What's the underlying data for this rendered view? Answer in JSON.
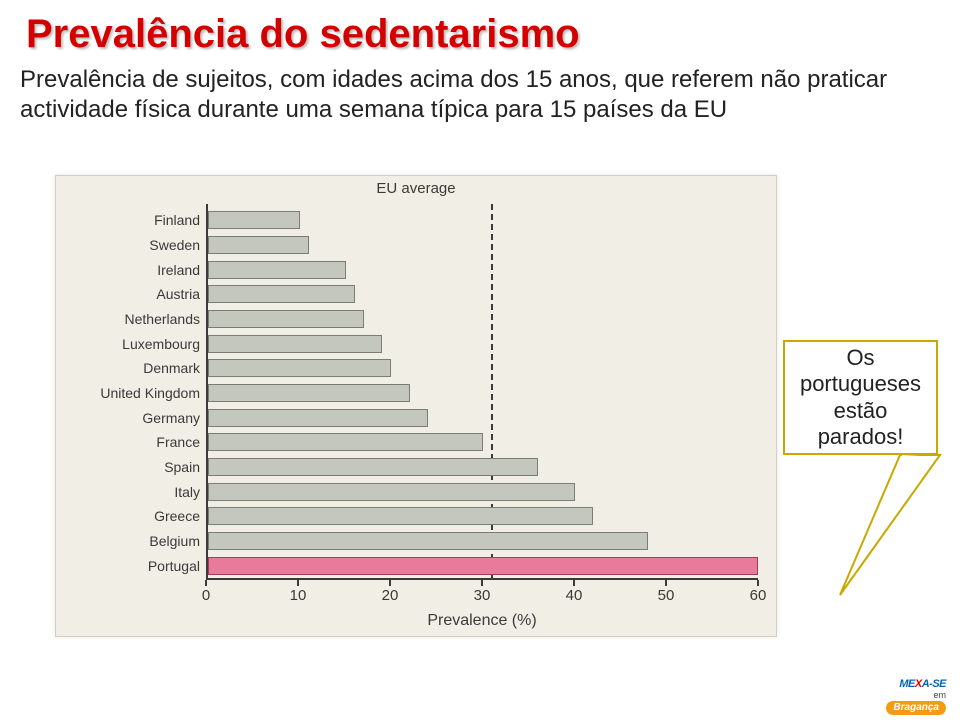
{
  "title": "Prevalência do sedentarismo",
  "subtitle": "Prevalência de sujeitos, com idades acima dos 15 anos, que referem não praticar actividade física durante uma semana típica para 15 países da EU",
  "chart": {
    "type": "bar-horizontal",
    "eu_average_label": "EU average",
    "eu_average_value": 31,
    "x_title": "Prevalence (%)",
    "xlim": [
      0,
      60
    ],
    "xtick_step": 10,
    "background_color": "#f1eee6",
    "bar_color": "#c4c7bd",
    "bar_border": "#7a7d72",
    "highlight_color": "#e97a9b",
    "highlight_border": "#a83a5a",
    "axis_color": "#3a3a3a",
    "label_fontsize": 14,
    "tick_fontsize": 15,
    "categories": [
      {
        "label": "Finland",
        "value": 10,
        "highlight": false
      },
      {
        "label": "Sweden",
        "value": 11,
        "highlight": false
      },
      {
        "label": "Ireland",
        "value": 15,
        "highlight": false
      },
      {
        "label": "Austria",
        "value": 16,
        "highlight": false
      },
      {
        "label": "Netherlands",
        "value": 17,
        "highlight": false
      },
      {
        "label": "Luxembourg",
        "value": 19,
        "highlight": false
      },
      {
        "label": "Denmark",
        "value": 20,
        "highlight": false
      },
      {
        "label": "United Kingdom",
        "value": 22,
        "highlight": false
      },
      {
        "label": "Germany",
        "value": 24,
        "highlight": false
      },
      {
        "label": "France",
        "value": 30,
        "highlight": false
      },
      {
        "label": "Spain",
        "value": 36,
        "highlight": false
      },
      {
        "label": "Italy",
        "value": 40,
        "highlight": false
      },
      {
        "label": "Greece",
        "value": 42,
        "highlight": false
      },
      {
        "label": "Belgium",
        "value": 48,
        "highlight": false
      },
      {
        "label": "Portugal",
        "value": 60,
        "highlight": true
      }
    ]
  },
  "callout": {
    "text": "Os portugueses estão parados!",
    "border_color": "#c9a800",
    "background": "#ffffff",
    "fontsize": 22
  },
  "logo": {
    "line1_a": "ME",
    "line1_x": "X",
    "line1_b": "A-SE",
    "line2": "em",
    "line3": "Bragança"
  }
}
